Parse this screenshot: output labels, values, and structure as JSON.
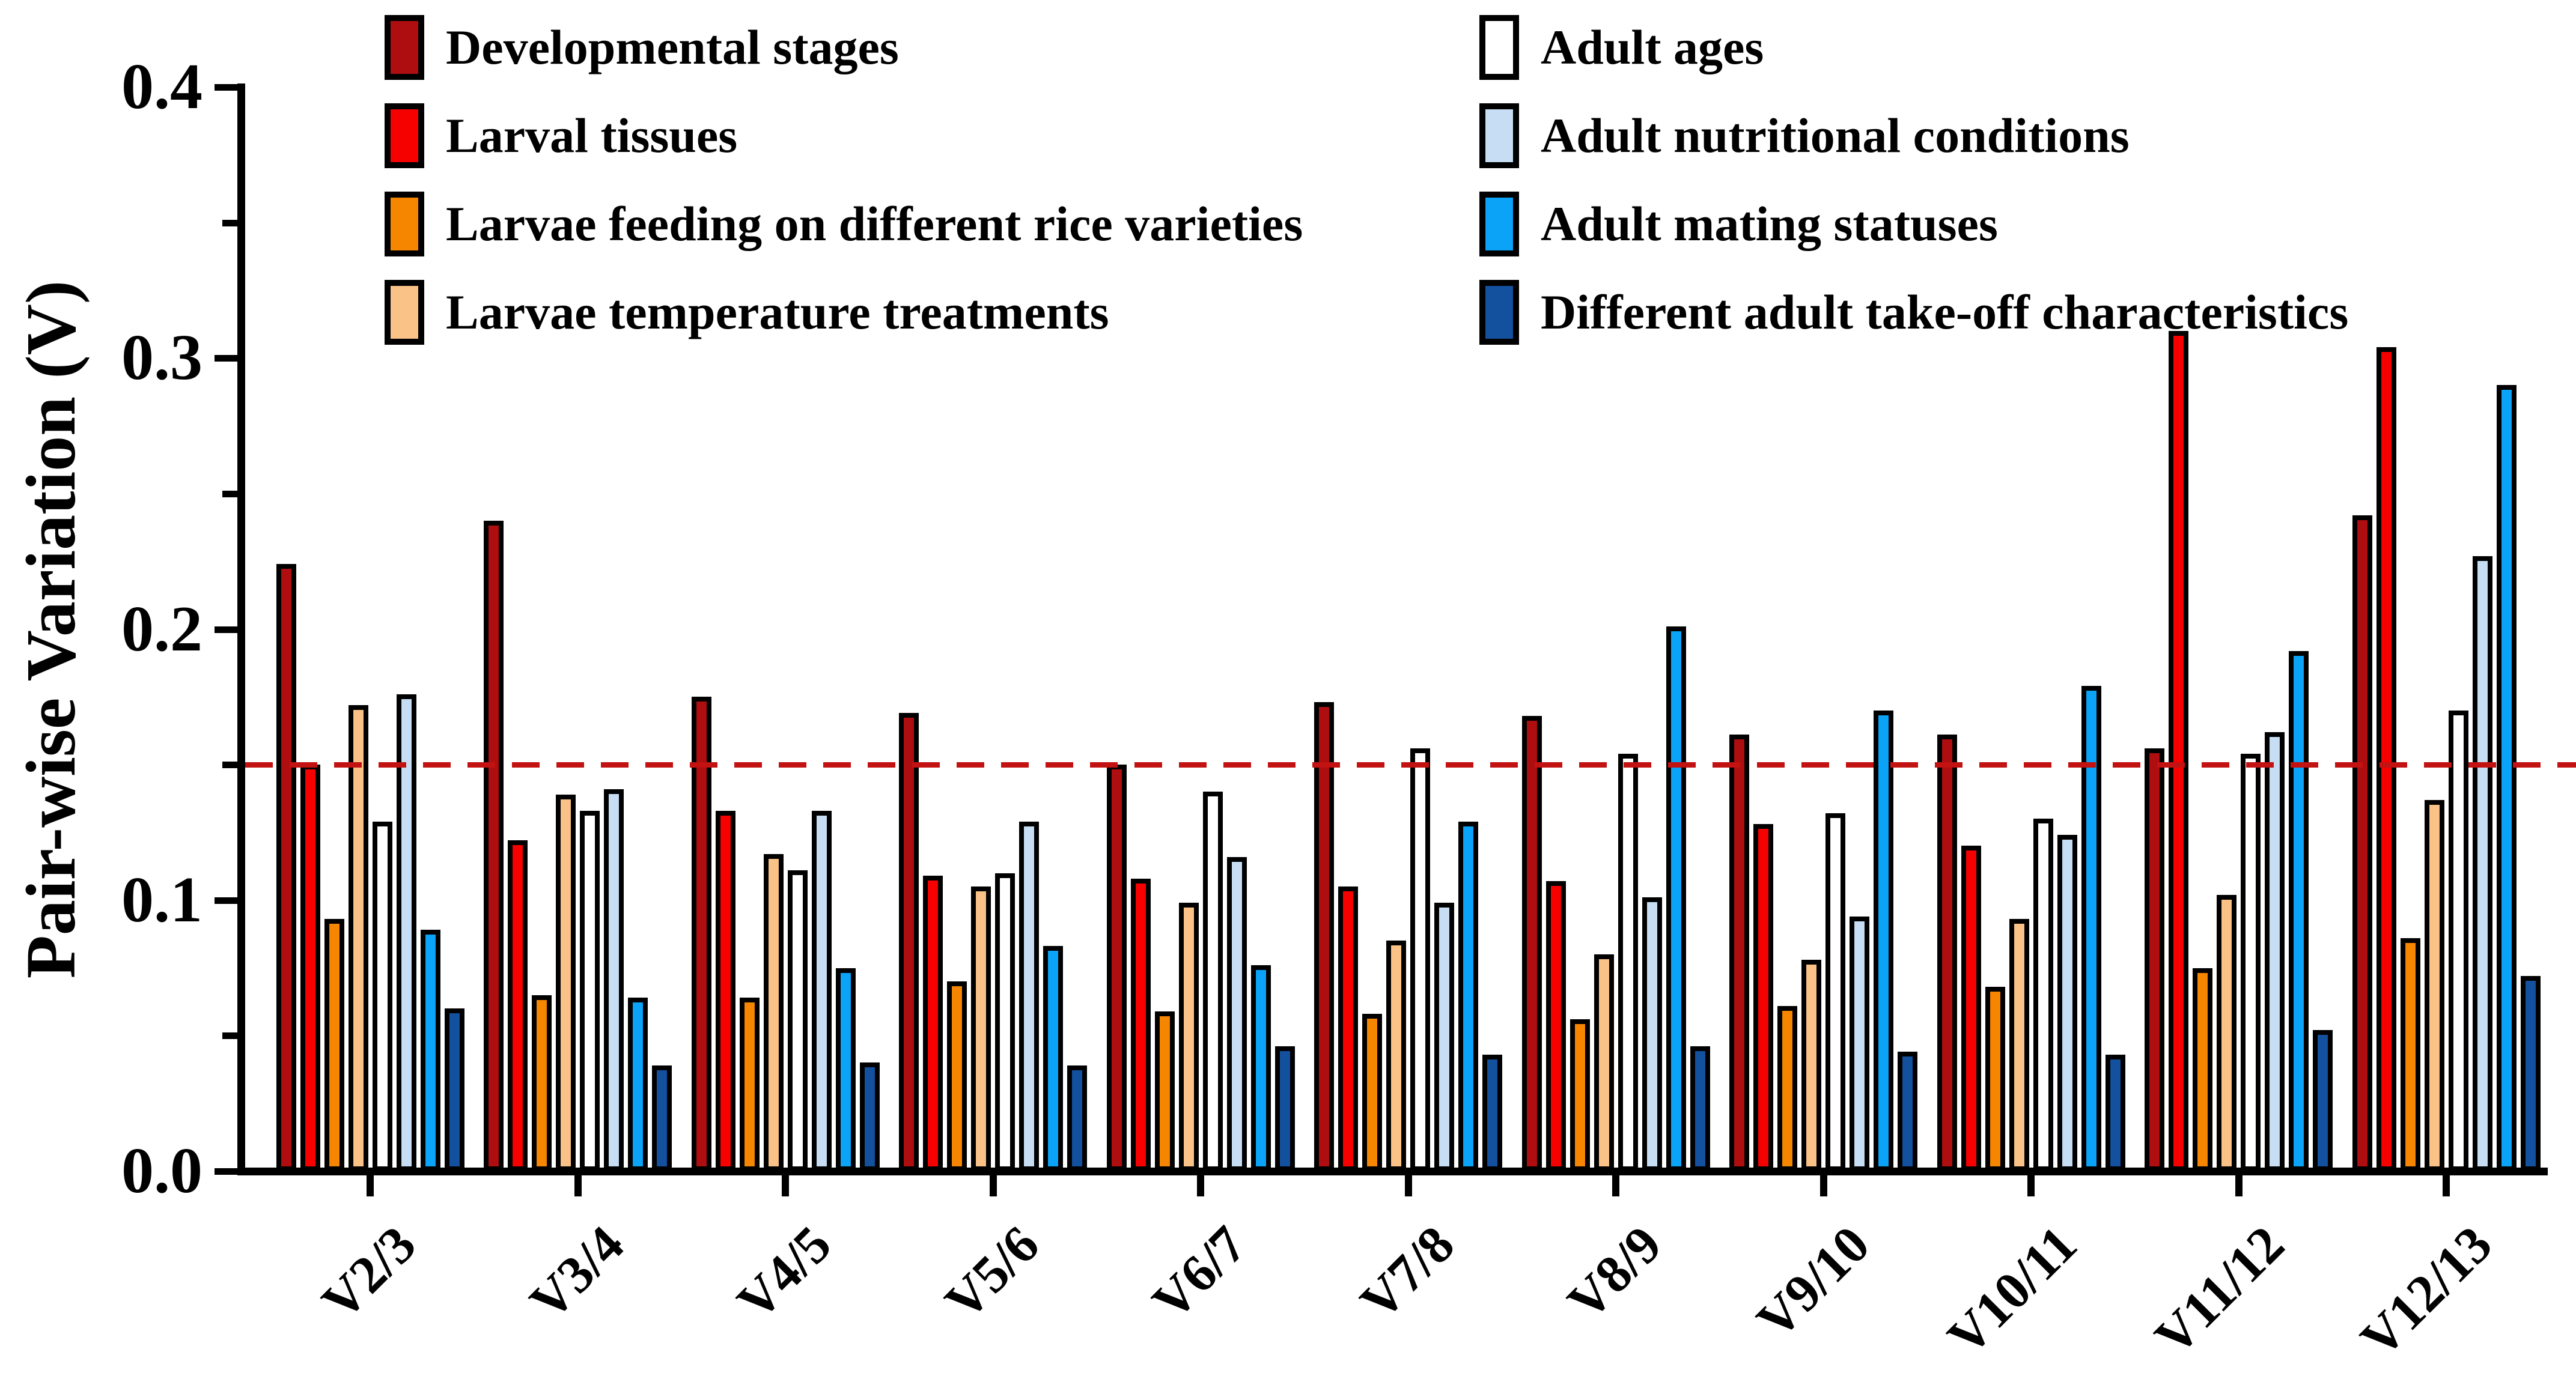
{
  "chart_data": {
    "type": "bar",
    "title": "",
    "xlabel": "",
    "ylabel": "Pair-wise Variation (V)",
    "ylim": [
      0,
      0.4
    ],
    "ytick_labels": [
      "0.0",
      "0.1",
      "0.2",
      "0.3",
      "0.4"
    ],
    "ytick_values": [
      0.0,
      0.1,
      0.2,
      0.3,
      0.4
    ],
    "minor_tick_step": 0.05,
    "grid": false,
    "legend_position": "top-inside-two-columns",
    "threshold_line": {
      "value": 0.15,
      "style": "dashed",
      "color": "#C21212"
    },
    "axis_color": "#000000",
    "bar_border_color": "#000000",
    "categories": [
      "V2/3",
      "V3/4",
      "V4/5",
      "V5/6",
      "V6/7",
      "V7/8",
      "V8/9",
      "V9/10",
      "V10/11",
      "V11/12",
      "V12/13"
    ],
    "series": [
      {
        "name": "Developmental stages",
        "color": "#AE0E0F",
        "values": [
          0.224,
          0.24,
          0.175,
          0.169,
          0.15,
          0.173,
          0.168,
          0.161,
          0.161,
          0.156,
          0.242
        ]
      },
      {
        "name": "Larval tissues",
        "color": "#F60000",
        "values": [
          0.15,
          0.122,
          0.133,
          0.109,
          0.108,
          0.105,
          0.107,
          0.128,
          0.12,
          0.31,
          0.304
        ]
      },
      {
        "name": "Larvae feeding on different rice varieties",
        "color": "#F68500",
        "values": [
          0.093,
          0.065,
          0.064,
          0.07,
          0.059,
          0.058,
          0.056,
          0.061,
          0.068,
          0.075,
          0.086
        ]
      },
      {
        "name": "Larvae temperature treatments",
        "color": "#FAC287",
        "values": [
          0.172,
          0.139,
          0.117,
          0.105,
          0.099,
          0.085,
          0.08,
          0.078,
          0.093,
          0.102,
          0.137
        ]
      },
      {
        "name": "Adult ages",
        "color": "#FFFFFF",
        "values": [
          0.129,
          0.133,
          0.111,
          0.11,
          0.14,
          0.156,
          0.154,
          0.132,
          0.13,
          0.154,
          0.17
        ]
      },
      {
        "name": "Adult nutritional conditions",
        "color": "#C6DDF4",
        "values": [
          0.176,
          0.141,
          0.133,
          0.129,
          0.116,
          0.099,
          0.101,
          0.094,
          0.124,
          0.162,
          0.227
        ]
      },
      {
        "name": "Adult mating statuses",
        "color": "#0AA3F7",
        "values": [
          0.089,
          0.064,
          0.075,
          0.083,
          0.076,
          0.129,
          0.201,
          0.17,
          0.179,
          0.192,
          0.29
        ]
      },
      {
        "name": "Different adult take-off characteristics",
        "color": "#13519E",
        "values": [
          0.06,
          0.039,
          0.04,
          0.039,
          0.046,
          0.043,
          0.046,
          0.044,
          0.043,
          0.052,
          0.072
        ]
      }
    ]
  }
}
